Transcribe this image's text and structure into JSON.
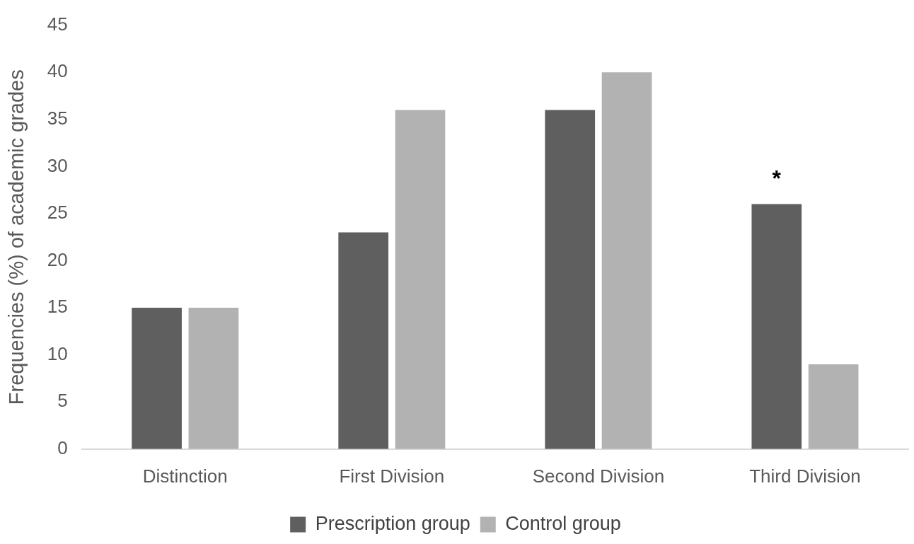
{
  "chart_data": {
    "type": "bar",
    "ylabel": "Frequencies (%) of academic grades",
    "categories": [
      "Distinction",
      "First Division",
      "Second Division",
      "Third Division"
    ],
    "series": [
      {
        "name": "Prescription group",
        "color": "#5f5f5f",
        "values": [
          15,
          23,
          36,
          26
        ]
      },
      {
        "name": "Control group",
        "color": "#b2b2b2",
        "values": [
          15,
          36,
          40,
          9
        ]
      }
    ],
    "ylim": [
      0,
      45
    ],
    "yticks": [
      0,
      5,
      10,
      15,
      20,
      25,
      30,
      35,
      40,
      45
    ],
    "grid": false,
    "legend": "bottom",
    "annotations": [
      "*"
    ]
  }
}
